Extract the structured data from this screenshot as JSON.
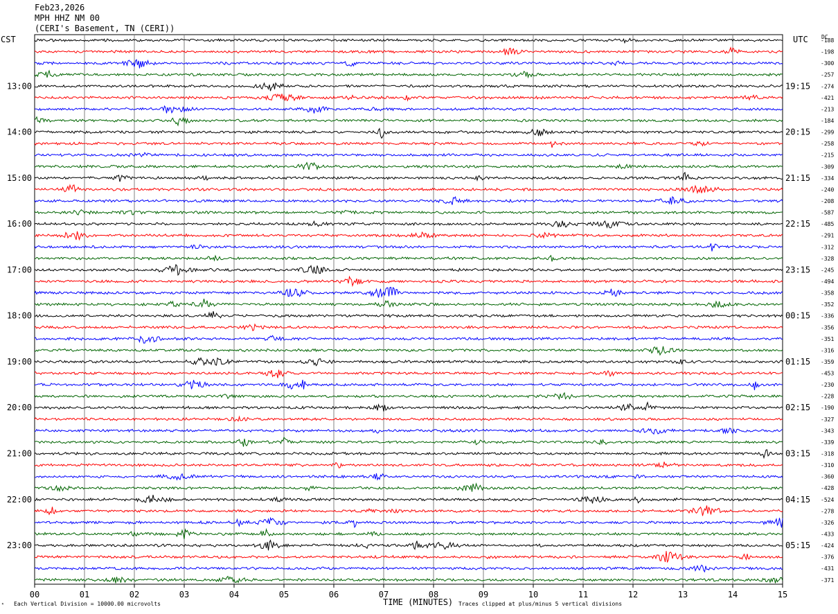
{
  "header": {
    "date": "Feb23,2026",
    "station": "MPH HHZ NM 00",
    "location": "(CERI's Basement, TN (CERI))"
  },
  "left_timezone": "CST",
  "right_timezone": "UTC",
  "dc_label": "DC",
  "footer": {
    "scale_note": "Each Vertical Division = 10000.00 microvolts",
    "clip_note": "Traces clipped at plus/minus 5 vertical divisions",
    "corner_glyph": "ᴿ"
  },
  "chart_data": {
    "type": "line",
    "title": "",
    "xlabel": "TIME (MINUTES)",
    "ylabel": "",
    "xlim": [
      0,
      15
    ],
    "x_ticks": [
      "00",
      "01",
      "02",
      "03",
      "04",
      "05",
      "06",
      "07",
      "08",
      "09",
      "10",
      "11",
      "12",
      "13",
      "14",
      "15"
    ],
    "trace_colors": [
      "#000000",
      "#ff0000",
      "#0000ff",
      "#006400"
    ],
    "left_hour_labels": [
      "13:00",
      "14:00",
      "15:00",
      "16:00",
      "17:00",
      "18:00",
      "19:00",
      "20:00",
      "21:00",
      "22:00",
      "23:00"
    ],
    "right_hour_labels": [
      "19:15",
      "20:15",
      "21:15",
      "22:15",
      "23:15",
      "00:15",
      "01:15",
      "02:15",
      "03:15",
      "04:15",
      "05:15"
    ],
    "dc_offsets": [
      "-188",
      "-198",
      "-300",
      "-257",
      "-274",
      "-421",
      "-213",
      "-184",
      "-299",
      "-258",
      "-215",
      "-309",
      "-334",
      "-240",
      "-208",
      "-587",
      "-485",
      "-291",
      "-312",
      "-328",
      "-245",
      "-494",
      "-358",
      "-352",
      "-336",
      "-356",
      "-351",
      "-316",
      "-359",
      "-453",
      "-230",
      "-228",
      "-190",
      "-327",
      "-343",
      "-339",
      "-318",
      "-310",
      "-360",
      "-428",
      "-524",
      "-278",
      "-326",
      "-433",
      "-424",
      "-376",
      "-431",
      "-371"
    ],
    "trace_count": 48,
    "traces_per_hour": 4,
    "grid": true,
    "legend": "none"
  }
}
